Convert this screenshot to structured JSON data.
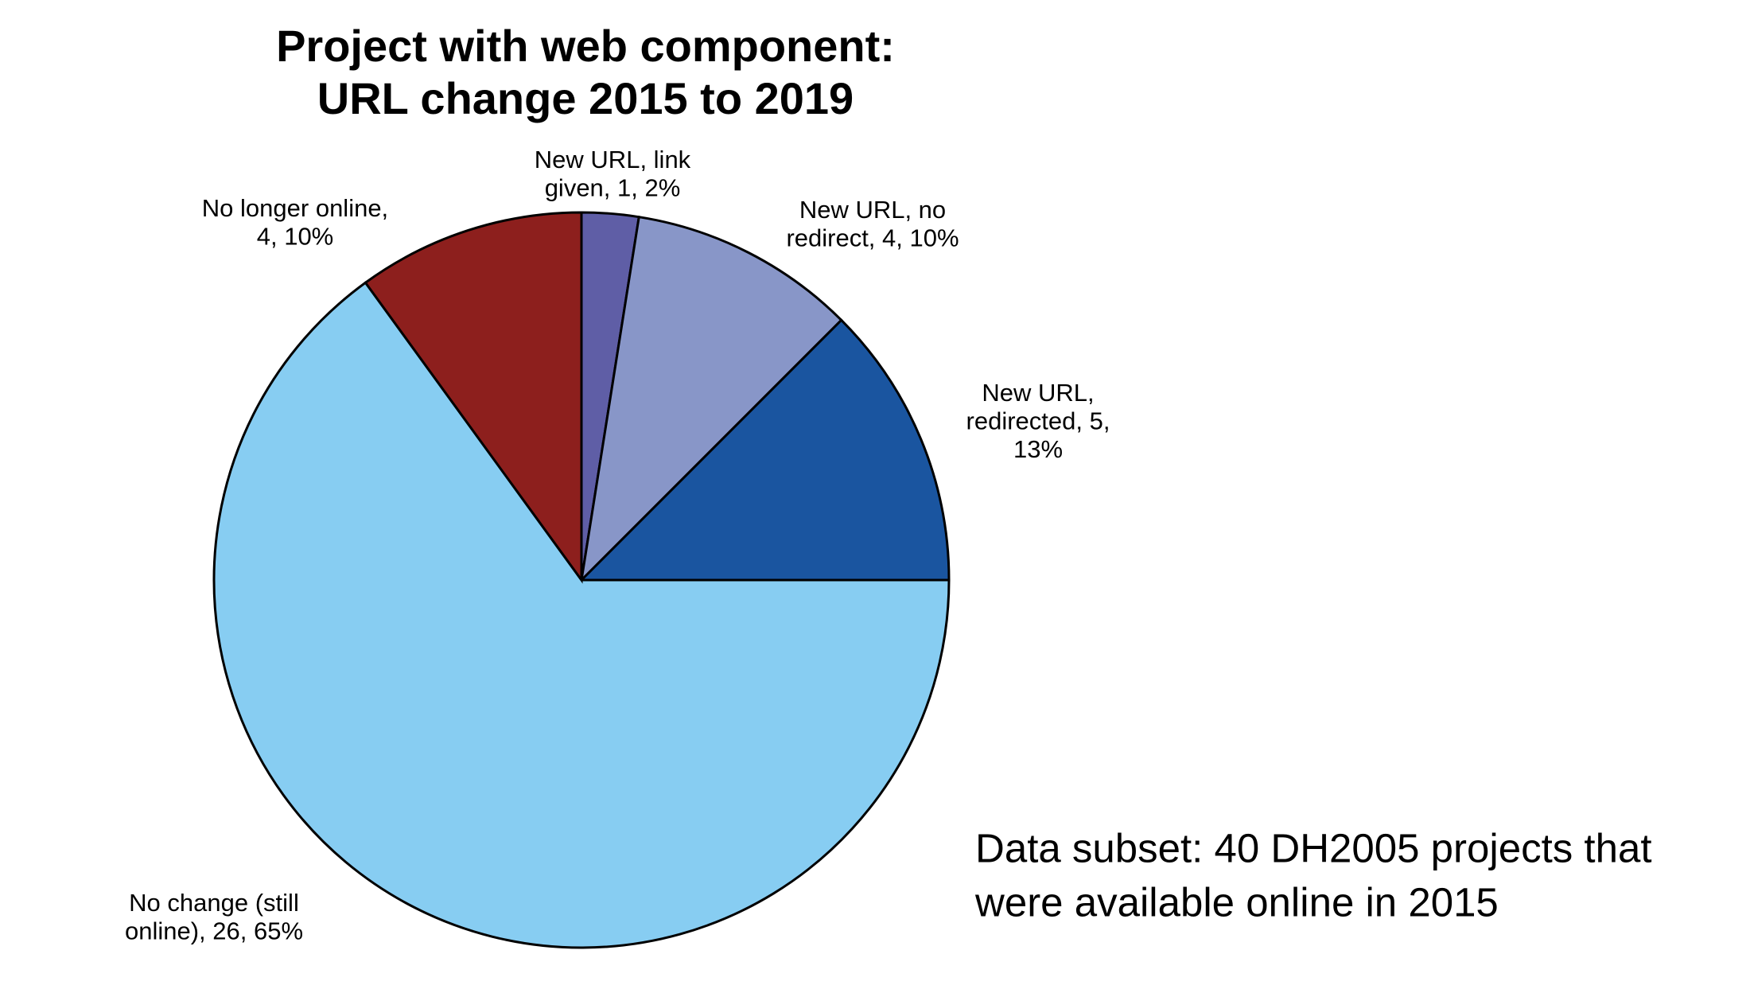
{
  "chart_data": {
    "type": "pie",
    "title": [
      "Project with web component:",
      "URL change 2015 to 2019"
    ],
    "labels": [
      [
        "New URL, link",
        "given, 1, 2%"
      ],
      [
        "New URL, no",
        "redirect, 4, 10%"
      ],
      [
        "New URL,",
        "redirected, 5,",
        "13%"
      ],
      [
        "No change (still",
        "online), 26, 65%"
      ],
      [
        "No longer online,",
        "4, 10%"
      ]
    ],
    "values": [
      1,
      4,
      5,
      26,
      4
    ],
    "colors": [
      "#5f5ea6",
      "#8896c8",
      "#1a55a0",
      "#87cdf2",
      "#8d1f1d"
    ],
    "start_angle": 90,
    "direction": "clockwise",
    "note": [
      "Data subset: 40 DH2005 projects that",
      "were available online in 2015"
    ]
  }
}
